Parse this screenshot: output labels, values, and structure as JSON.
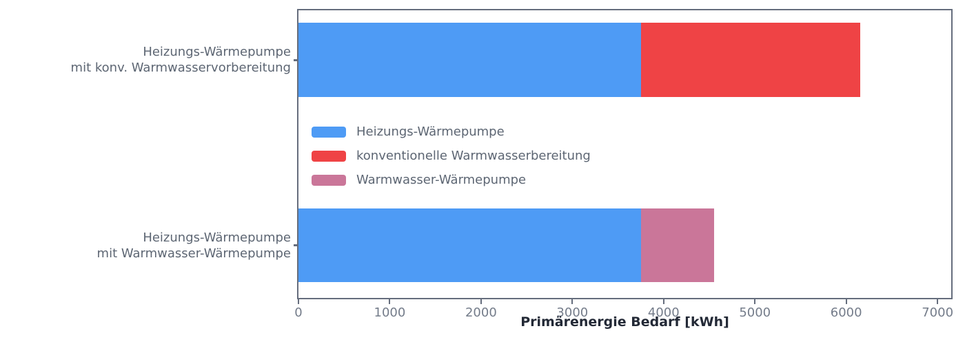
{
  "chart_data": {
    "type": "bar",
    "orientation": "horizontal",
    "stacked": true,
    "title": "",
    "xlabel": "Primärenergie Bedarf [kWh]",
    "ylabel": "",
    "categories": [
      "Heizungs-Wärmepumpe\nmit konv. Warmwasservorbereitung",
      "Heizungs-Wärmepumpe\nmit Warmwasser-Wärmepumpe"
    ],
    "series": [
      {
        "name": "Heizungs-Wärmepumpe",
        "color": "#4e9bf5",
        "values": [
          3750,
          3750
        ]
      },
      {
        "name": "konventionelle Warmwasserbereitung",
        "color": "#ef4345",
        "values": [
          2400,
          0
        ]
      },
      {
        "name": "Warmwasser-Wärmepumpe",
        "color": "#ca7699",
        "values": [
          0,
          800
        ]
      }
    ],
    "totals": [
      6150,
      4550
    ],
    "xlim": [
      0,
      7150
    ],
    "xticks": [
      0,
      1000,
      2000,
      3000,
      4000,
      5000,
      6000,
      7000
    ],
    "grid": false,
    "legend_position": "inside-upper-left",
    "frame": true
  },
  "colors": {
    "background": "#ffffff",
    "axis_frame": "#656d7d",
    "tick_label": "#747c8a",
    "category_label": "#5d6673",
    "legend_label": "#5d6673",
    "axis_label": "#232936"
  }
}
